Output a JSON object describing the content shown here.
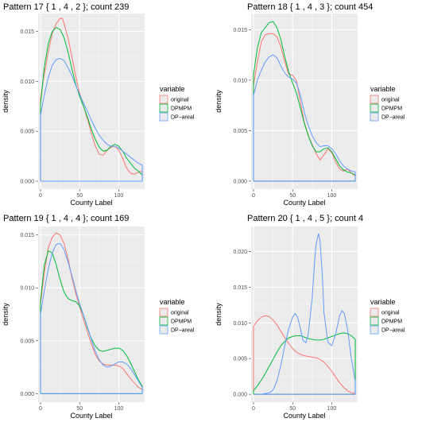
{
  "colors": {
    "panel_bg": "#ebebeb",
    "grid_major": "#ffffff",
    "grid_minor": "#f5f5f5",
    "original": "#F8766D",
    "DPMPM": "#00BA38",
    "DP-areal": "#619CFF"
  },
  "legend": {
    "title": "variable",
    "entries": [
      "original",
      "DPMPM",
      "DP−areal"
    ]
  },
  "chart_data": [
    {
      "type": "line",
      "title": "Pattern 17 { 1 , 4 ,  2 }; count 239",
      "xlabel": "County Label",
      "ylabel": "density",
      "xlim": [
        -3,
        133
      ],
      "ylim": [
        -0.0008,
        0.0168
      ],
      "xticks": [
        0,
        50,
        100
      ],
      "yticks": [
        0.0,
        0.005,
        0.01,
        0.015
      ],
      "ytick_labels": [
        "0.000",
        "0.005",
        "0.010",
        "0.015"
      ],
      "legend_position": "right",
      "grid": true,
      "series": [
        {
          "name": "original",
          "x": [
            0,
            5,
            10,
            15,
            20,
            25,
            28,
            30,
            35,
            40,
            45,
            50,
            55,
            60,
            65,
            70,
            75,
            80,
            85,
            90,
            95,
            100,
            105,
            110,
            115,
            120,
            125,
            130
          ],
          "y": [
            0.0083,
            0.0108,
            0.013,
            0.0148,
            0.0158,
            0.0163,
            0.0163,
            0.0158,
            0.0144,
            0.0125,
            0.0105,
            0.0088,
            0.0075,
            0.0062,
            0.0048,
            0.0035,
            0.0027,
            0.0026,
            0.0031,
            0.0034,
            0.0035,
            0.0031,
            0.0023,
            0.0013,
            0.0008,
            0.0007,
            0.0009,
            0.001
          ]
        },
        {
          "name": "DPMPM",
          "x": [
            0,
            5,
            10,
            15,
            20,
            25,
            30,
            35,
            40,
            45,
            50,
            55,
            60,
            65,
            70,
            75,
            80,
            85,
            90,
            95,
            100,
            105,
            110,
            115,
            120,
            125,
            130
          ],
          "y": [
            0.0077,
            0.0115,
            0.0138,
            0.015,
            0.0154,
            0.0152,
            0.0144,
            0.013,
            0.0113,
            0.0097,
            0.0085,
            0.0075,
            0.0064,
            0.0052,
            0.0042,
            0.0034,
            0.003,
            0.0031,
            0.0035,
            0.0037,
            0.0035,
            0.003,
            0.0023,
            0.0018,
            0.0013,
            0.001,
            0.0006
          ]
        },
        {
          "name": "DP−areal",
          "x": [
            0,
            5,
            10,
            15,
            20,
            25,
            30,
            35,
            40,
            45,
            50,
            55,
            60,
            65,
            70,
            75,
            80,
            85,
            90,
            95,
            100,
            105,
            110,
            115,
            120,
            125,
            130
          ],
          "y": [
            0.0066,
            0.0087,
            0.0104,
            0.0116,
            0.0122,
            0.0123,
            0.0121,
            0.0114,
            0.0106,
            0.0096,
            0.0087,
            0.0078,
            0.007,
            0.0061,
            0.0053,
            0.0046,
            0.0041,
            0.0037,
            0.0035,
            0.0035,
            0.0033,
            0.003,
            0.0027,
            0.0024,
            0.0021,
            0.0018,
            0.0016
          ]
        }
      ]
    },
    {
      "type": "line",
      "title": "Pattern 18 { 1 , 4 ,  3 }; count 454",
      "xlabel": "County Label",
      "ylabel": "density",
      "xlim": [
        -3,
        133
      ],
      "ylim": [
        -0.0008,
        0.0166
      ],
      "xticks": [
        0,
        50,
        100
      ],
      "yticks": [
        0.0,
        0.005,
        0.01,
        0.015
      ],
      "ytick_labels": [
        "0.000",
        "0.005",
        "0.010",
        "0.015"
      ],
      "legend_position": "right",
      "grid": true,
      "series": [
        {
          "name": "original",
          "x": [
            0,
            5,
            10,
            15,
            20,
            25,
            30,
            35,
            40,
            45,
            50,
            55,
            60,
            65,
            70,
            75,
            80,
            85,
            90,
            95,
            100,
            105,
            110,
            115,
            120,
            125,
            130
          ],
          "y": [
            0.0095,
            0.0118,
            0.0138,
            0.0145,
            0.0146,
            0.0146,
            0.0143,
            0.0133,
            0.0118,
            0.0106,
            0.0105,
            0.0099,
            0.0078,
            0.0058,
            0.0045,
            0.0036,
            0.0027,
            0.0021,
            0.0026,
            0.0032,
            0.0028,
            0.0019,
            0.0012,
            0.001,
            0.0012,
            0.0008,
            0.0005
          ]
        },
        {
          "name": "DPMPM",
          "x": [
            0,
            5,
            10,
            15,
            20,
            25,
            30,
            35,
            40,
            45,
            50,
            55,
            60,
            65,
            70,
            75,
            80,
            85,
            90,
            95,
            100,
            105,
            110,
            115,
            120,
            125,
            130
          ],
          "y": [
            0.0105,
            0.0132,
            0.0147,
            0.0152,
            0.0157,
            0.0158,
            0.0152,
            0.014,
            0.0123,
            0.0108,
            0.0097,
            0.0087,
            0.0072,
            0.0057,
            0.0045,
            0.0035,
            0.0029,
            0.0029,
            0.0032,
            0.0033,
            0.0029,
            0.0022,
            0.0015,
            0.0011,
            0.0009,
            0.0008,
            0.0006
          ]
        },
        {
          "name": "DP−areal",
          "x": [
            0,
            5,
            10,
            15,
            20,
            25,
            30,
            35,
            40,
            45,
            50,
            55,
            60,
            65,
            70,
            75,
            80,
            85,
            90,
            95,
            100,
            105,
            110,
            115,
            120,
            125,
            130
          ],
          "y": [
            0.0085,
            0.01,
            0.011,
            0.0118,
            0.0123,
            0.0125,
            0.0122,
            0.0114,
            0.0107,
            0.0103,
            0.0101,
            0.0097,
            0.0085,
            0.0068,
            0.0055,
            0.0045,
            0.0038,
            0.0034,
            0.0035,
            0.0035,
            0.0032,
            0.0027,
            0.002,
            0.0015,
            0.0012,
            0.001,
            0.0009
          ]
        }
      ]
    },
    {
      "type": "line",
      "title": "Pattern 19 { 1 , 4 ,  4 }; count 169",
      "xlabel": "County Label",
      "ylabel": "density",
      "xlim": [
        -3,
        133
      ],
      "ylim": [
        -0.0008,
        0.0158
      ],
      "xticks": [
        0,
        50,
        100
      ],
      "yticks": [
        0.0,
        0.005,
        0.01,
        0.015
      ],
      "ytick_labels": [
        "0.000",
        "0.005",
        "0.010",
        "0.015"
      ],
      "legend_position": "right",
      "grid": true,
      "series": [
        {
          "name": "original",
          "x": [
            0,
            5,
            10,
            15,
            20,
            25,
            30,
            35,
            40,
            45,
            50,
            55,
            60,
            65,
            70,
            75,
            80,
            85,
            90,
            95,
            100,
            105,
            110,
            115,
            120,
            125,
            130
          ],
          "y": [
            0.0085,
            0.0115,
            0.0138,
            0.0148,
            0.0152,
            0.015,
            0.0142,
            0.0128,
            0.011,
            0.0095,
            0.0082,
            0.007,
            0.0058,
            0.0047,
            0.0037,
            0.0031,
            0.0028,
            0.0027,
            0.0027,
            0.0027,
            0.0026,
            0.0024,
            0.0019,
            0.0014,
            0.001,
            0.0006,
            0.0004
          ]
        },
        {
          "name": "DPMPM",
          "x": [
            0,
            5,
            10,
            15,
            20,
            25,
            30,
            35,
            40,
            45,
            50,
            55,
            60,
            65,
            70,
            75,
            80,
            85,
            90,
            95,
            100,
            105,
            110,
            115,
            120,
            125,
            130
          ],
          "y": [
            0.0088,
            0.0122,
            0.0135,
            0.0133,
            0.0122,
            0.0108,
            0.0096,
            0.009,
            0.0088,
            0.0087,
            0.0083,
            0.0074,
            0.0062,
            0.0052,
            0.0045,
            0.0041,
            0.004,
            0.0041,
            0.0042,
            0.0043,
            0.0043,
            0.0041,
            0.0036,
            0.0029,
            0.0021,
            0.0013,
            0.0007
          ]
        },
        {
          "name": "DP−areal",
          "x": [
            0,
            5,
            10,
            15,
            20,
            25,
            30,
            35,
            40,
            45,
            50,
            55,
            60,
            65,
            70,
            75,
            80,
            85,
            90,
            95,
            100,
            105,
            110,
            115,
            120,
            125,
            130
          ],
          "y": [
            0.0075,
            0.0098,
            0.0118,
            0.0133,
            0.0141,
            0.0142,
            0.0136,
            0.0125,
            0.0112,
            0.0098,
            0.0085,
            0.0074,
            0.0063,
            0.0051,
            0.004,
            0.0032,
            0.0027,
            0.0025,
            0.0026,
            0.0028,
            0.003,
            0.003,
            0.0028,
            0.0024,
            0.0018,
            0.0012,
            0.0006
          ]
        }
      ]
    },
    {
      "type": "line",
      "title": "Pattern 20 { 1 , 4 ,  5 }; count 4",
      "xlabel": "County Label",
      "ylabel": "density",
      "xlim": [
        -3,
        133
      ],
      "ylim": [
        -0.0011,
        0.0235
      ],
      "xticks": [
        0,
        50,
        100
      ],
      "yticks": [
        0.0,
        0.005,
        0.01,
        0.015,
        0.02
      ],
      "ytick_labels": [
        "0.000",
        "0.005",
        "0.010",
        "0.015",
        "0.020"
      ],
      "legend_position": "right",
      "grid": true,
      "series": [
        {
          "name": "original",
          "x": [
            0,
            5,
            10,
            15,
            20,
            25,
            30,
            35,
            40,
            45,
            50,
            55,
            60,
            65,
            70,
            75,
            80,
            85,
            90,
            95,
            100,
            105,
            110,
            115,
            120,
            125,
            130
          ],
          "y": [
            0.0095,
            0.0103,
            0.0108,
            0.011,
            0.0109,
            0.0104,
            0.0097,
            0.0088,
            0.0079,
            0.0071,
            0.0064,
            0.0059,
            0.0056,
            0.0054,
            0.0053,
            0.0052,
            0.0051,
            0.0049,
            0.0045,
            0.0039,
            0.0032,
            0.0024,
            0.0016,
            0.001,
            0.0005,
            0.0002,
            0.0001
          ]
        },
        {
          "name": "DPMPM",
          "x": [
            0,
            5,
            10,
            15,
            20,
            25,
            30,
            35,
            40,
            45,
            50,
            55,
            60,
            65,
            70,
            75,
            80,
            85,
            90,
            95,
            100,
            105,
            110,
            115,
            120,
            125,
            130
          ],
          "y": [
            0.0005,
            0.0012,
            0.002,
            0.0029,
            0.0039,
            0.0049,
            0.0059,
            0.0068,
            0.0074,
            0.0079,
            0.0081,
            0.0082,
            0.0082,
            0.008,
            0.0078,
            0.0077,
            0.0076,
            0.0076,
            0.0077,
            0.0079,
            0.0081,
            0.0083,
            0.0085,
            0.0086,
            0.0085,
            0.0082,
            0.0077
          ]
        },
        {
          "name": "DP−areal",
          "x": [
            0,
            10,
            20,
            25,
            30,
            35,
            40,
            45,
            50,
            53,
            56,
            60,
            63,
            67,
            70,
            75,
            78,
            80,
            83,
            85,
            88,
            90,
            95,
            100,
            105,
            110,
            113,
            116,
            120,
            125,
            130
          ],
          "y": [
            0.0,
            0.0,
            0.0002,
            0.0006,
            0.0019,
            0.0041,
            0.0068,
            0.0092,
            0.0108,
            0.0113,
            0.0109,
            0.0092,
            0.0076,
            0.0072,
            0.0085,
            0.0135,
            0.0185,
            0.021,
            0.0225,
            0.0215,
            0.0165,
            0.0115,
            0.0073,
            0.0068,
            0.0085,
            0.011,
            0.0117,
            0.0113,
            0.0092,
            0.005,
            0.0018
          ]
        }
      ]
    }
  ]
}
